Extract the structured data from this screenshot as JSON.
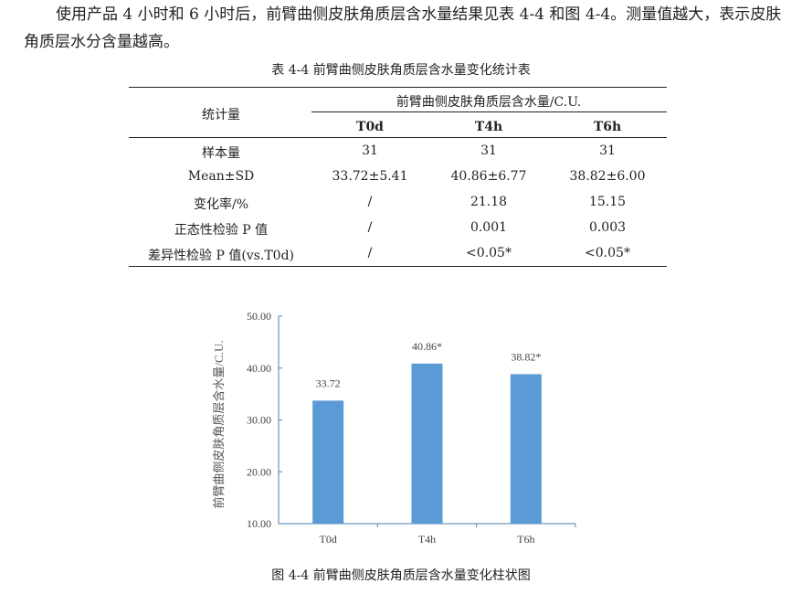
{
  "paragraph": "使用产品 4 小时和 6 小时后，前臂曲侧皮肤角质层含水量结果见表 4-4 和图 4-4。测量值越大，表示皮肤角质层水分含量越高。",
  "table": {
    "caption": "表 4-4  前臂曲侧皮肤角质层含水量变化统计表",
    "stub_header": "统计量",
    "group_header": "前臂曲侧皮肤角质层含水量/C.U.",
    "columns": [
      "T0d",
      "T4h",
      "T6h"
    ],
    "rows": [
      {
        "label": "样本量",
        "values": [
          "31",
          "31",
          "31"
        ]
      },
      {
        "label": "Mean±SD",
        "values": [
          "33.72±5.41",
          "40.86±6.77",
          "38.82±6.00"
        ]
      },
      {
        "label": "变化率/%",
        "values": [
          "/",
          "21.18",
          "15.15"
        ]
      },
      {
        "label": "正态性检验 P 值",
        "values": [
          "/",
          "0.001",
          "0.003"
        ]
      },
      {
        "label": "差异性检验 P 值(vs.T0d)",
        "values": [
          "/",
          "<0.05*",
          "<0.05*"
        ]
      }
    ]
  },
  "chart_data": {
    "type": "bar",
    "categories": [
      "T0d",
      "T4h",
      "T6h"
    ],
    "values": [
      33.72,
      40.86,
      38.82
    ],
    "data_labels": [
      "33.72",
      "40.86*",
      "38.82*"
    ],
    "ylabel": "前臂曲侧皮肤角质层含水量/C.U.",
    "ylim": [
      10,
      50
    ],
    "yticks": [
      "10.00",
      "20.00",
      "30.00",
      "40.00",
      "50.00"
    ],
    "grid": false,
    "bar_color": "#5b9bd5",
    "axis_color": "#4a7fb0"
  },
  "figure_caption": "图 4-4  前臂曲侧皮肤角质层含水量变化柱状图"
}
